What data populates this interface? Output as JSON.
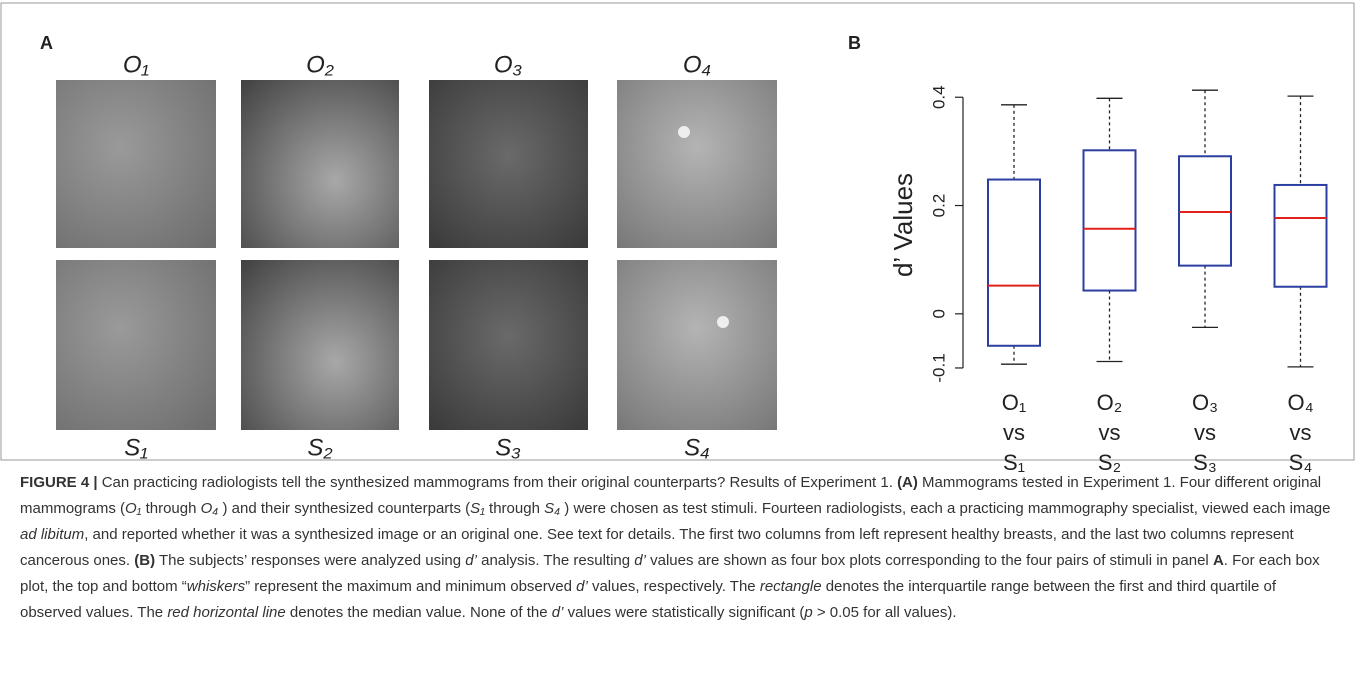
{
  "panel_a": {
    "label": "A",
    "originals": [
      "O₁",
      "O₂",
      "O₃",
      "O₄"
    ],
    "synthesized": [
      "S₁",
      "S₂",
      "S₃",
      "S₄"
    ]
  },
  "panel_b": {
    "label": "B"
  },
  "chart_data": {
    "type": "box",
    "ylabel": "d’ Values",
    "categories": [
      "O₁ vs S₁",
      "O₂ vs S₂",
      "O₃ vs S₃",
      "O₄ vs S₄"
    ],
    "boxes": [
      {
        "min": -0.093,
        "q1": -0.059,
        "median": 0.052,
        "q3": 0.248,
        "max": 0.386
      },
      {
        "min": -0.088,
        "q1": 0.043,
        "median": 0.157,
        "q3": 0.302,
        "max": 0.398
      },
      {
        "min": -0.025,
        "q1": 0.089,
        "median": 0.188,
        "q3": 0.291,
        "max": 0.413
      },
      {
        "min": -0.098,
        "q1": 0.05,
        "median": 0.177,
        "q3": 0.238,
        "max": 0.402
      }
    ],
    "box_color": "#2b3fa0",
    "median_color": "#e0201b",
    "whisker_color": "#222222",
    "ylim": [
      -0.113,
      0.43
    ],
    "yticks": [
      -0.1,
      0,
      0.2,
      0.4
    ]
  },
  "caption": {
    "runs": [
      {
        "text": "FIGURE 4 |",
        "style": "b"
      },
      {
        "text": " Can practicing radiologists tell the synthesized mammograms from their original counterparts? Results of Experiment 1. ",
        "style": "n"
      },
      {
        "text": "(A)",
        "style": "b"
      },
      {
        "text": " Mammograms tested in Experiment 1. Four different original mammograms (",
        "style": "n"
      },
      {
        "text": "O₁",
        "style": "i"
      },
      {
        "text": " through ",
        "style": "n"
      },
      {
        "text": "O₄",
        "style": "i"
      },
      {
        "text": " ) and their synthesized counterparts (",
        "style": "n"
      },
      {
        "text": "S₁",
        "style": "i"
      },
      {
        "text": " through ",
        "style": "n"
      },
      {
        "text": "S₄",
        "style": "i"
      },
      {
        "text": " ) were chosen as test stimuli. Fourteen radiologists, each a practicing mammography specialist, viewed each image ",
        "style": "n"
      },
      {
        "text": "ad libitum",
        "style": "i"
      },
      {
        "text": ", and reported whether it was a synthesized image or an original one. See text for details. The first two columns from left represent healthy breasts, and the last two columns represent cancerous ones. ",
        "style": "n"
      },
      {
        "text": "(B)",
        "style": "b"
      },
      {
        "text": " The subjects’ responses were analyzed using ",
        "style": "n"
      },
      {
        "text": "d’",
        "style": "i"
      },
      {
        "text": " analysis. The resulting ",
        "style": "n"
      },
      {
        "text": "d’",
        "style": "i"
      },
      {
        "text": " values are shown as four box plots corresponding to the four pairs of stimuli in panel ",
        "style": "n"
      },
      {
        "text": "A",
        "style": "b"
      },
      {
        "text": ". For each box plot, the top and bottom “",
        "style": "n"
      },
      {
        "text": "whiskers",
        "style": "i"
      },
      {
        "text": "” represent the maximum and minimum observed ",
        "style": "n"
      },
      {
        "text": "d’",
        "style": "i"
      },
      {
        "text": " values, respectively. The ",
        "style": "n"
      },
      {
        "text": "rectangle",
        "style": "i"
      },
      {
        "text": " denotes the interquartile range between the first and third quartile of observed values. The ",
        "style": "n"
      },
      {
        "text": "red horizontal line",
        "style": "i"
      },
      {
        "text": " denotes the median value. None of the ",
        "style": "n"
      },
      {
        "text": "d’",
        "style": "i"
      },
      {
        "text": " values were statistically significant (",
        "style": "n"
      },
      {
        "text": "p",
        "style": "i"
      },
      {
        "text": " > 0.05 for all values).",
        "style": "n"
      }
    ]
  }
}
